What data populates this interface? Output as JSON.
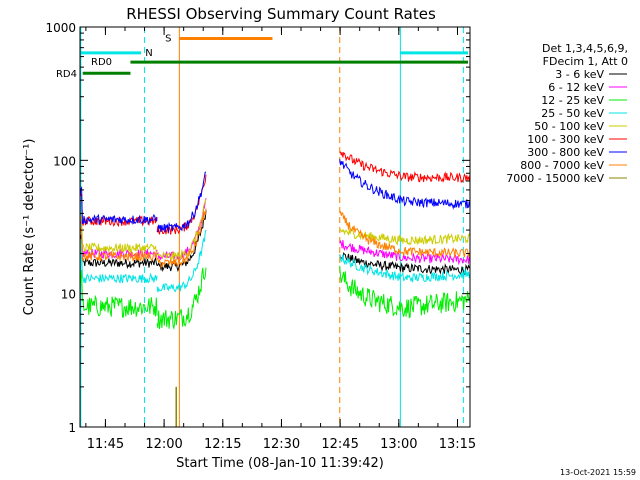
{
  "chart_data": {
    "type": "line",
    "title": "RHESSI Observing Summary Count Rates",
    "xlabel": "Start Time (08-Jan-10 11:39:42)",
    "ylabel": "Count Rate (s⁻¹ detector⁻¹)",
    "y_scale": "log",
    "ylim": [
      1,
      1000
    ],
    "xlim_minutes": [
      -1.2,
      98.5
    ],
    "y_ticks": [
      1,
      10,
      100,
      1000
    ],
    "y_tick_labels": [
      "1",
      "10",
      "100",
      "1000"
    ],
    "x_ticks": [
      5.3,
      20.3,
      35.3,
      50.3,
      65.3,
      80.3,
      95.3
    ],
    "x_tick_labels": [
      "11:45",
      "12:00",
      "12:15",
      "12:30",
      "12:45",
      "13:00",
      "13:15"
    ],
    "legend_header": [
      "Det 1,3,4,5,6,9,",
      "FDecim 1, Att 0"
    ],
    "legend_position": "right",
    "timestamp": "13-Oct-2021 15:59",
    "segments": [
      [
        -1.2,
        18.5
      ],
      [
        18.5,
        31.0
      ],
      [
        65.2,
        98.5
      ]
    ],
    "series": [
      {
        "name": "3 - 6 keV",
        "color": "#000000",
        "values": [
          17,
          16,
          20,
          17,
          16,
          15
        ]
      },
      {
        "name": "6 - 12 keV",
        "color": "#ff00ff",
        "values": [
          20,
          19,
          24,
          22,
          19,
          18
        ]
      },
      {
        "name": "12 - 25 keV",
        "color": "#00ee00",
        "values": [
          8,
          6.5,
          14,
          9,
          6.5,
          9
        ]
      },
      {
        "name": "25 - 50 keV",
        "color": "#00e5e5",
        "values": [
          13,
          11,
          19,
          16,
          12,
          14
        ]
      },
      {
        "name": "50 - 100 keV",
        "color": "#cccc00",
        "values": [
          22,
          19,
          30,
          28,
          24,
          26
        ]
      },
      {
        "name": "100 - 300 keV",
        "color": "#ff0000",
        "values": [
          35,
          30,
          120,
          90,
          75,
          74
        ]
      },
      {
        "name": "300 - 800 keV",
        "color": "#0000ff",
        "values": [
          36,
          31,
          100,
          65,
          50,
          47
        ]
      },
      {
        "name": "800 - 7000 keV",
        "color": "#ff8000",
        "values": [
          19,
          17,
          40,
          24,
          21,
          20
        ]
      },
      {
        "name": "7000 - 15000 keV",
        "color": "#888800",
        "values": [
          0,
          0,
          0,
          0,
          0,
          0
        ]
      }
    ],
    "flags": [
      {
        "label": "N",
        "color": "#00e5e5",
        "y_value": 640,
        "ranges": [
          [
            -1.2,
            14.4
          ],
          [
            80.7,
            98.0
          ]
        ]
      },
      {
        "label": "S",
        "color": "#ff8000",
        "y_value": 820,
        "ranges": [
          [
            24.2,
            48.0
          ]
        ]
      },
      {
        "label": "RD0",
        "color": "#008000",
        "y_value": 545,
        "ranges": [
          [
            11.7,
            98.0
          ]
        ]
      },
      {
        "label": "RD4",
        "color": "#008000",
        "y_value": 450,
        "ranges": [
          [
            -0.5,
            11.7
          ]
        ]
      }
    ],
    "vertical_markers": [
      {
        "color": "#00e5e5",
        "style": "solid",
        "x": -1.0
      },
      {
        "color": "#00e5e5",
        "style": "dashed",
        "x": 15.3
      },
      {
        "color": "#ff8000",
        "style": "solid",
        "x": 24.2
      },
      {
        "color": "#ff8000",
        "style": "dashed",
        "x": 65.2
      },
      {
        "color": "#00e5e5",
        "style": "solid",
        "x": 80.7
      },
      {
        "color": "#00e5e5",
        "style": "dashed",
        "x": 96.8
      }
    ],
    "spikes": [
      {
        "series": "7000 - 15000 keV",
        "x": 23.4,
        "y": 2.0
      }
    ]
  }
}
